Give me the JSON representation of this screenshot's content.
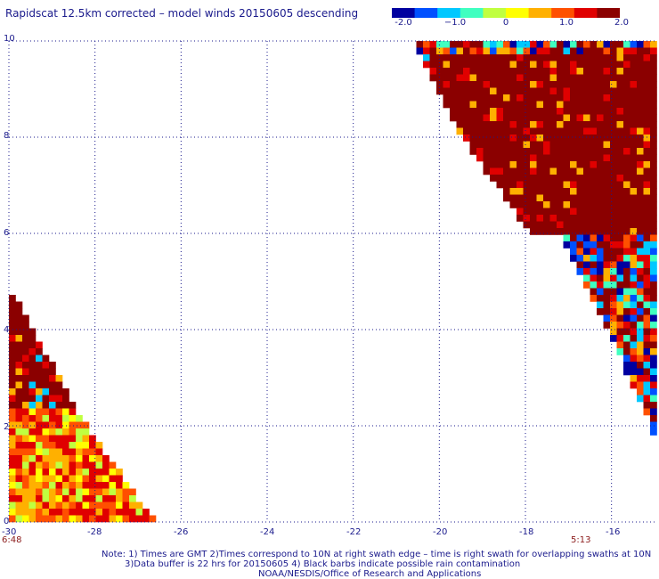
{
  "title": "Rapidscat 12.5km corrected – model winds 20150605 descending",
  "colorbar": {
    "labels": [
      "-2.0",
      "−1.0",
      "0",
      "1.0",
      "2.0"
    ],
    "values": [
      -2.0,
      -1.0,
      0,
      1.0,
      2.0
    ],
    "colors": [
      "#0000a0",
      "#0050ff",
      "#00c8ff",
      "#40ffc0",
      "#c0ff40",
      "#ffff00",
      "#ffb000",
      "#ff5000",
      "#e00000",
      "#8b0000"
    ]
  },
  "axes": {
    "x_ticks": [
      "-30",
      "-28",
      "-26",
      "-24",
      "-22",
      "-20",
      "-18",
      "-16"
    ],
    "x_values": [
      -30,
      -28,
      -26,
      -24,
      -22,
      -20,
      -18,
      -16
    ],
    "y_ticks": [
      "0",
      "2",
      "4",
      "6",
      "8",
      "10"
    ],
    "y_values": [
      0,
      2,
      4,
      6,
      8,
      10
    ],
    "xlim": [
      -30,
      -15
    ],
    "ylim": [
      0,
      10
    ]
  },
  "times": {
    "left": "6:48",
    "right": "5:13"
  },
  "notes": {
    "line1": "Note: 1) Times are GMT 2)Times correspond to 10N at right swath edge – time is right swath for overlapping swaths at 10N",
    "line2": "3)Data buffer is 22 hrs for 20150605 4) Black barbs indicate possible rain contamination",
    "line3": "NOAA/NESDIS/Office of Research and Applications"
  }
}
